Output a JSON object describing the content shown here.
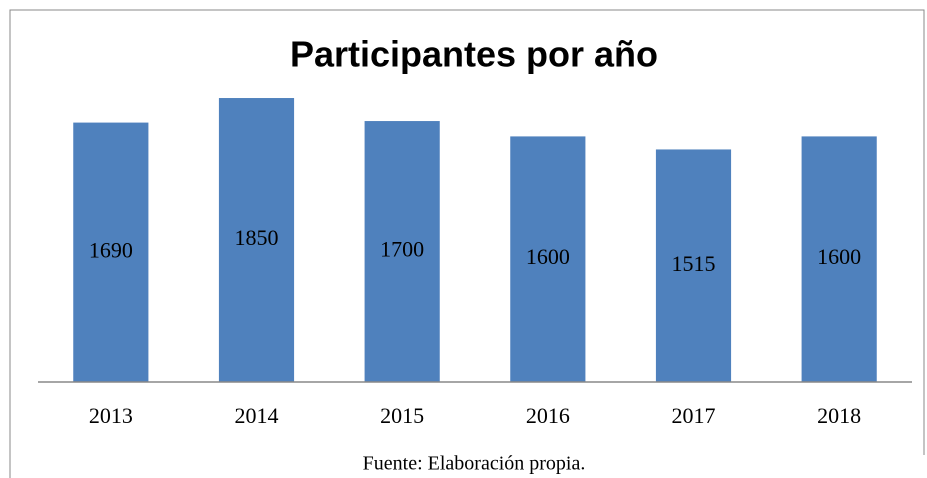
{
  "chart_data": {
    "type": "bar",
    "title": "Participantes por año",
    "categories": [
      "2013",
      "2014",
      "2015",
      "2016",
      "2017",
      "2018"
    ],
    "values": [
      1690,
      1850,
      1700,
      1600,
      1515,
      1600
    ],
    "color": "#4f81bd",
    "ylim": [
      0,
      2000
    ],
    "source": "Fuente: Elaboración propia."
  }
}
